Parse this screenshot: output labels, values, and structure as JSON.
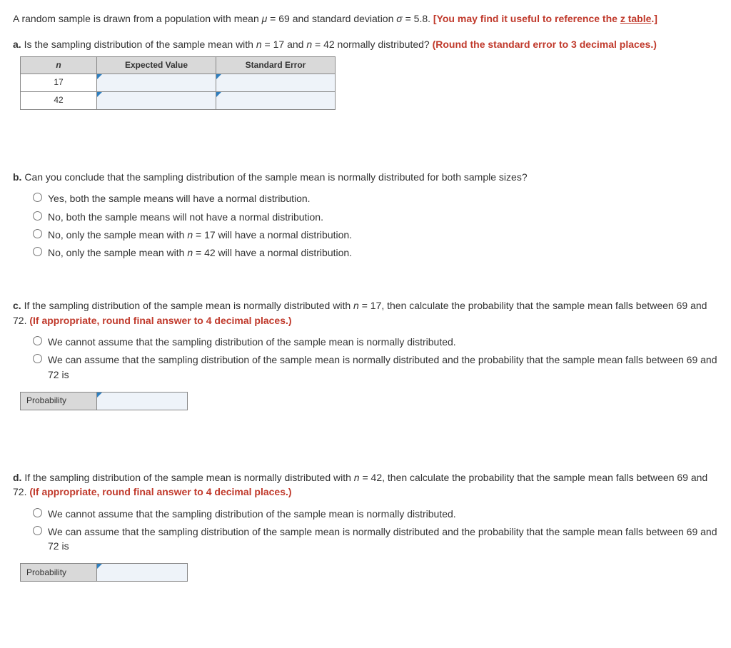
{
  "intro": {
    "pre": "A random sample is drawn from a population with mean ",
    "mu_sym": "μ",
    "mu_eq": " = 69 and standard deviation ",
    "sigma_sym": "σ",
    "sigma_eq": " = 5.8. ",
    "bracket_open": "[You may find it useful to reference the ",
    "link": "z table",
    "bracket_close": ".]"
  },
  "a": {
    "label": "a.",
    "q_pre": " Is the sampling distribution of the sample mean with ",
    "n1_sym": "n",
    "n1_eq": " = 17 and ",
    "n2_sym": "n",
    "n2_eq": " = 42 normally distributed? ",
    "note": "(Round the standard error to 3 decimal places.)",
    "th_n": "n",
    "th_ev": "Expected Value",
    "th_se": "Standard Error",
    "row1_n": "17",
    "row2_n": "42"
  },
  "b": {
    "label": "b.",
    "q": " Can you conclude that the sampling distribution of the sample mean is normally distributed for both sample sizes?",
    "opt1": "Yes, both the sample means will have a normal distribution.",
    "opt2": "No, both the sample means will not have a normal distribution.",
    "opt3_pre": "No, only the sample mean with ",
    "opt3_sym": "n",
    "opt3_post": " = 17 will have a normal distribution.",
    "opt4_pre": "No, only the sample mean with ",
    "opt4_sym": "n",
    "opt4_post": " = 42 will have a normal distribution."
  },
  "c": {
    "label": "c.",
    "q_pre": " If the sampling distribution of the sample mean is normally distributed with ",
    "n_sym": "n",
    "q_post": " = 17, then calculate the probability that the sample mean falls between 69 and 72. ",
    "note": "(If appropriate, round final answer to 4 decimal places.)",
    "opt1": "We cannot assume that the sampling distribution of the sample mean is normally distributed.",
    "opt2": "We can assume that the sampling distribution of the sample mean is normally distributed and the probability that the sample mean falls between 69 and 72 is",
    "prob_label": "Probability"
  },
  "d": {
    "label": "d.",
    "q_pre": " If the sampling distribution of the sample mean is normally distributed with ",
    "n_sym": "n",
    "q_post": " = 42, then calculate the probability that the sample mean falls between 69 and 72. ",
    "note": "(If appropriate, round final answer to 4 decimal places.)",
    "opt1": "We cannot assume that the sampling distribution of the sample mean is normally distributed.",
    "opt2": "We can assume that the sampling distribution of the sample mean is normally distributed and the probability that the sample mean falls between 69 and 72 is",
    "prob_label": "Probability"
  }
}
